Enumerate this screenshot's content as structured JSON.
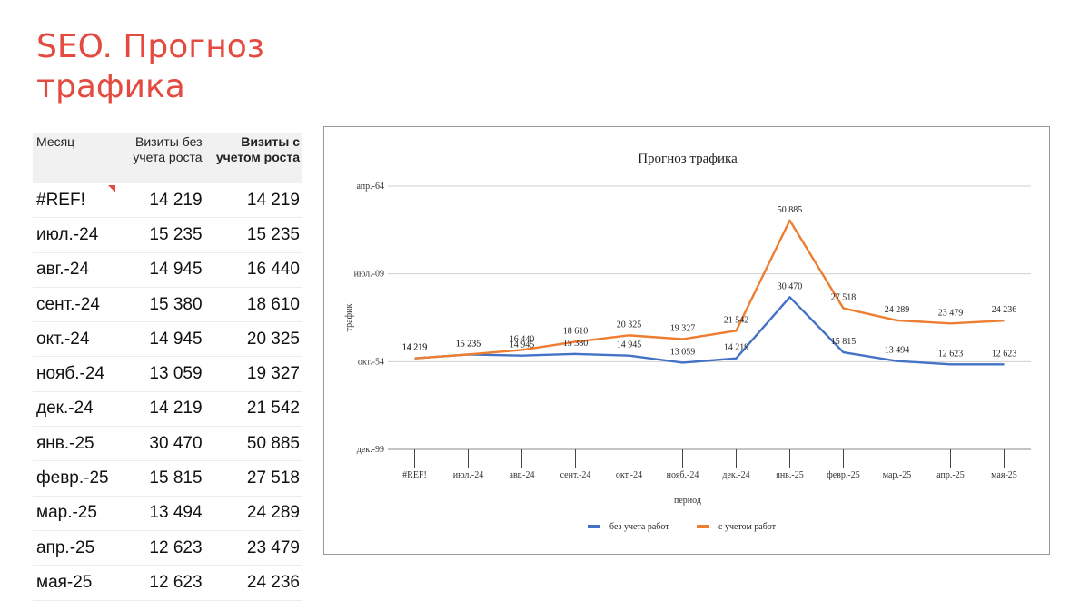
{
  "page": {
    "title": "SEO. Прогноз трафика"
  },
  "table": {
    "headers": {
      "month": "Месяц",
      "base": "Визиты без учета роста",
      "growth": "Визиты с учетом роста"
    },
    "rows": [
      {
        "month": "#REF!",
        "base": "14 219",
        "growth": "14 219"
      },
      {
        "month": "июл.-24",
        "base": "15 235",
        "growth": "15 235"
      },
      {
        "month": "авг.-24",
        "base": "14 945",
        "growth": "16 440"
      },
      {
        "month": "сент.-24",
        "base": "15 380",
        "growth": "18 610"
      },
      {
        "month": "окт.-24",
        "base": "14 945",
        "growth": "20 325"
      },
      {
        "month": "нояб.-24",
        "base": "13 059",
        "growth": "19 327"
      },
      {
        "month": "дек.-24",
        "base": "14 219",
        "growth": "21 542"
      },
      {
        "month": "янв.-25",
        "base": "30 470",
        "growth": "50 885"
      },
      {
        "month": "февр.-25",
        "base": "15 815",
        "growth": "27 518"
      },
      {
        "month": "мар.-25",
        "base": "13 494",
        "growth": "24 289"
      },
      {
        "month": "апр.-25",
        "base": "12 623",
        "growth": "23 479"
      },
      {
        "month": "мая-25",
        "base": "12 623",
        "growth": "24 236"
      }
    ]
  },
  "chart_data": {
    "type": "line",
    "title": "Прогноз трафика",
    "xlabel": "период",
    "ylabel": "трафик",
    "categories": [
      "#REF!",
      "июл.-24",
      "авг.-24",
      "сент.-24",
      "окт.-24",
      "нояб.-24",
      "дек.-24",
      "янв.-25",
      "февр.-25",
      "мар.-25",
      "апр.-25",
      "мая-25"
    ],
    "y_tick_labels": [
      "апр.-64",
      "июл.-09",
      "окт.-54",
      "дек.-99"
    ],
    "ylim": [
      -10000,
      60000
    ],
    "grid": true,
    "legend_position": "bottom",
    "series": [
      {
        "name": "без учета работ",
        "color": "#4472c4",
        "values": [
          14219,
          15235,
          14945,
          15380,
          14945,
          13059,
          14219,
          30470,
          15815,
          13494,
          12623,
          12623
        ],
        "labels": [
          "14 219",
          "15 235",
          "14 945",
          "15 380",
          "14 945",
          "13 059",
          "14 219",
          "30 470",
          "15 815",
          "13 494",
          "12 623",
          "12 623"
        ]
      },
      {
        "name": "с учетом работ",
        "color": "#ed7d31",
        "values": [
          14219,
          15235,
          16440,
          18610,
          20325,
          19327,
          21542,
          50885,
          27518,
          24289,
          23479,
          24236
        ],
        "labels": [
          "14 219",
          "15 235",
          "16 440",
          "18 610",
          "20 325",
          "19 327",
          "21 542",
          "50 885",
          "27 518",
          "24 289",
          "23 479",
          "24 236"
        ]
      }
    ]
  }
}
